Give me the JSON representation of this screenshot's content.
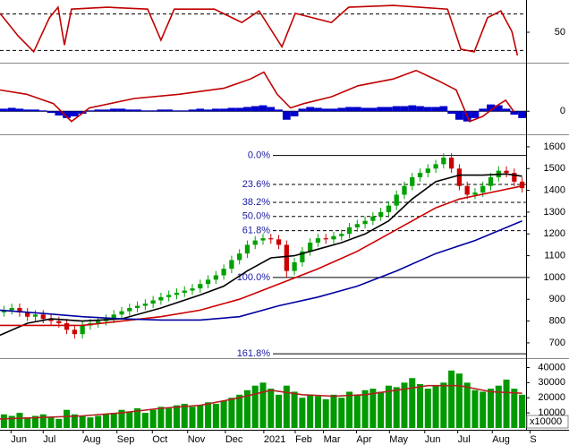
{
  "chart_data": [
    {
      "type": "line",
      "xlim": [
        -0.5,
        66.5
      ],
      "ylim": [
        0,
        100
      ],
      "yticks": [
        50
      ],
      "levels": [
        20,
        80
      ],
      "series": [
        {
          "color": "#c00000",
          "x": [
            -0.5,
            1.8,
            3.8,
            5.8,
            6.9,
            7.7,
            8.6,
            13.2,
            18.3,
            20,
            21.7,
            26.8,
            30.3,
            32.5,
            35.4,
            37.1,
            41.7,
            43.9,
            49.6,
            56.5,
            58.2,
            59.9,
            61.6,
            63.3,
            64.7,
            65.4
          ],
          "values": [
            81,
            44,
            18,
            74,
            91,
            29,
            88,
            91,
            88,
            37,
            88,
            88,
            66,
            85,
            26,
            81,
            66,
            91,
            94,
            88,
            22,
            18,
            74,
            85,
            51,
            12
          ]
        }
      ]
    },
    {
      "type": "macd",
      "xlim": [
        -0.5,
        66.5
      ],
      "ylim": [
        -25,
        55
      ],
      "yticks": [
        0
      ],
      "grid": true,
      "histogram": {
        "color": "#0000cc",
        "values": [
          3,
          4,
          3,
          2,
          2,
          1,
          -2,
          -5,
          -8,
          -6,
          -3,
          1,
          2,
          2,
          3,
          3,
          2,
          2,
          1,
          1,
          2,
          2,
          1,
          1,
          2,
          3,
          2,
          3,
          3,
          4,
          4,
          5,
          6,
          7,
          5,
          2,
          -10,
          -6,
          3,
          5,
          4,
          3,
          3,
          4,
          5,
          5,
          4,
          4,
          5,
          5,
          6,
          6,
          7,
          6,
          5,
          5,
          6,
          -3,
          -10,
          -12,
          -8,
          3,
          8,
          7,
          3,
          -4,
          -8
        ]
      },
      "series": [
        {
          "color": "#c00000",
          "x": [
            -0.5,
            2.9,
            6.3,
            8.6,
            10.9,
            16.6,
            22.3,
            28,
            31.4,
            33.1,
            34.8,
            36.5,
            38.2,
            41.7,
            45.1,
            49.6,
            52.5,
            55.3,
            57.6,
            59.3,
            61,
            62.7,
            63.9,
            65
          ],
          "values": [
            25,
            20,
            9,
            -12,
            4,
            15,
            20,
            27,
            38,
            46,
            20,
            4,
            9,
            17,
            30,
            38,
            48,
            36,
            25,
            -12,
            -6,
            6,
            13,
            -1
          ]
        }
      ]
    },
    {
      "type": "candlestick",
      "xlim": [
        -0.5,
        66.5
      ],
      "ylim": [
        638,
        1649
      ],
      "yticks": [
        700,
        800,
        900,
        1000,
        1100,
        1200,
        1300,
        1400,
        1500,
        1600
      ],
      "up_color": "#00a000",
      "down_color": "#cc0000",
      "open": [
        840,
        850,
        860,
        840,
        820,
        830,
        810,
        800,
        790,
        760,
        740,
        780,
        790,
        800,
        810,
        830,
        845,
        860,
        870,
        880,
        895,
        910,
        920,
        930,
        940,
        950,
        970,
        990,
        1010,
        1040,
        1080,
        1110,
        1150,
        1170,
        1180,
        1175,
        1150,
        1030,
        1070,
        1120,
        1160,
        1180,
        1175,
        1190,
        1200,
        1230,
        1245,
        1260,
        1280,
        1300,
        1330,
        1380,
        1420,
        1460,
        1480,
        1500,
        1520,
        1550,
        1500,
        1420,
        1380,
        1390,
        1420,
        1460,
        1490,
        1480,
        1440
      ],
      "high": [
        870,
        880,
        880,
        860,
        850,
        850,
        830,
        820,
        810,
        780,
        800,
        810,
        820,
        830,
        850,
        865,
        880,
        890,
        900,
        915,
        930,
        940,
        950,
        960,
        970,
        990,
        1010,
        1030,
        1060,
        1100,
        1130,
        1170,
        1190,
        1200,
        1200,
        1195,
        1170,
        1090,
        1140,
        1180,
        1200,
        1200,
        1210,
        1220,
        1250,
        1265,
        1280,
        1300,
        1320,
        1350,
        1400,
        1440,
        1480,
        1500,
        1520,
        1540,
        1570,
        1570,
        1520,
        1440,
        1410,
        1440,
        1480,
        1510,
        1510,
        1500,
        1460
      ],
      "low": [
        820,
        830,
        820,
        800,
        800,
        790,
        780,
        770,
        740,
        720,
        720,
        760,
        770,
        780,
        790,
        810,
        825,
        840,
        850,
        860,
        875,
        890,
        900,
        910,
        920,
        930,
        950,
        970,
        990,
        1020,
        1060,
        1090,
        1130,
        1150,
        1155,
        1130,
        1000,
        1010,
        1050,
        1100,
        1140,
        1155,
        1155,
        1170,
        1180,
        1210,
        1225,
        1240,
        1260,
        1280,
        1310,
        1360,
        1400,
        1440,
        1460,
        1480,
        1500,
        1480,
        1400,
        1360,
        1360,
        1370,
        1400,
        1440,
        1460,
        1420,
        1390
      ],
      "close": [
        850,
        860,
        840,
        820,
        830,
        810,
        800,
        790,
        760,
        740,
        780,
        790,
        800,
        810,
        830,
        845,
        860,
        870,
        880,
        895,
        910,
        920,
        930,
        940,
        950,
        970,
        990,
        1010,
        1040,
        1080,
        1110,
        1150,
        1170,
        1180,
        1175,
        1150,
        1030,
        1070,
        1120,
        1160,
        1180,
        1175,
        1190,
        1200,
        1230,
        1245,
        1260,
        1280,
        1300,
        1330,
        1380,
        1420,
        1460,
        1480,
        1500,
        1520,
        1550,
        1500,
        1420,
        1380,
        1390,
        1420,
        1460,
        1490,
        1480,
        1440,
        1410
      ],
      "series": [
        {
          "color": "#000000",
          "x": [
            -0.5,
            3,
            6,
            10,
            15,
            20,
            25,
            28,
            31,
            34,
            37,
            40,
            43,
            46,
            49,
            52,
            55,
            58,
            61,
            64,
            66
          ],
          "values": [
            735,
            790,
            810,
            800,
            810,
            860,
            920,
            960,
            1030,
            1090,
            1100,
            1130,
            1160,
            1200,
            1260,
            1360,
            1440,
            1470,
            1470,
            1475,
            1465
          ]
        },
        {
          "color": "#cc0000",
          "x": [
            -0.5,
            5,
            10,
            15,
            20,
            25,
            30,
            35,
            40,
            45,
            50,
            55,
            58,
            62,
            66
          ],
          "values": [
            780,
            780,
            780,
            800,
            820,
            850,
            900,
            970,
            1040,
            1120,
            1220,
            1320,
            1360,
            1390,
            1420
          ]
        },
        {
          "color": "#0000a0",
          "x": [
            -0.5,
            5,
            10,
            15,
            20,
            25,
            30,
            35,
            40,
            45,
            50,
            55,
            60,
            66
          ],
          "values": [
            850,
            835,
            820,
            810,
            805,
            805,
            820,
            870,
            910,
            960,
            1030,
            1110,
            1170,
            1260
          ]
        }
      ],
      "fib": [
        {
          "label": "0.0%",
          "value": 1560,
          "style": "solid"
        },
        {
          "label": "23.6%",
          "value": 1427,
          "style": "dashed"
        },
        {
          "label": "38.2%",
          "value": 1345,
          "style": "dashed"
        },
        {
          "label": "50.0%",
          "value": 1280,
          "style": "dashed"
        },
        {
          "label": "61.8%",
          "value": 1215,
          "style": "dashed"
        },
        {
          "label": "100.0%",
          "value": 1000,
          "style": "solid"
        },
        {
          "label": "161.8%",
          "value": 650,
          "style": "solid"
        }
      ]
    },
    {
      "type": "bar",
      "xlim": [
        -0.5,
        66.5
      ],
      "ylim": [
        0,
        45000
      ],
      "yticks": [
        10000,
        20000,
        30000,
        40000
      ],
      "unit_label": "x10000",
      "color": "#009900",
      "values": [
        9000,
        8000,
        10000,
        7000,
        8000,
        9000,
        7000,
        6000,
        12000,
        9000,
        8000,
        7000,
        8000,
        9000,
        10000,
        12000,
        11000,
        13000,
        10000,
        12000,
        14000,
        13000,
        15000,
        16000,
        14000,
        15000,
        17000,
        16000,
        18000,
        20000,
        22000,
        25000,
        28000,
        30000,
        26000,
        22000,
        28000,
        24000,
        20000,
        22000,
        21000,
        19000,
        22000,
        20000,
        24000,
        22000,
        25000,
        26000,
        24000,
        28000,
        27000,
        30000,
        33000,
        29000,
        26000,
        28000,
        30000,
        38000,
        36000,
        30000,
        25000,
        24000,
        26000,
        28000,
        32000,
        26000,
        22000
      ],
      "series": [
        {
          "color": "#b22222",
          "x": [
            -0.5,
            5,
            10,
            15,
            20,
            25,
            30,
            34,
            38,
            42,
            46,
            50,
            54,
            58,
            62,
            66
          ],
          "values": [
            6000,
            7000,
            8000,
            10000,
            13000,
            15000,
            20000,
            25000,
            22000,
            21000,
            22000,
            25000,
            28000,
            28000,
            24000,
            23000
          ]
        }
      ],
      "xticks": [
        {
          "value": 0.9,
          "label": "Jun"
        },
        {
          "value": 5.0,
          "label": "Jul"
        },
        {
          "value": 10.1,
          "label": "Aug"
        },
        {
          "value": 14.4,
          "label": "Sep"
        },
        {
          "value": 18.9,
          "label": "Oct"
        },
        {
          "value": 23.4,
          "label": "Nov"
        },
        {
          "value": 28.2,
          "label": "Dec"
        },
        {
          "value": 33.1,
          "label": "2021"
        },
        {
          "value": 37.1,
          "label": "Feb"
        },
        {
          "value": 40.7,
          "label": "Mar"
        },
        {
          "value": 44.9,
          "label": "Apr"
        },
        {
          "value": 49.1,
          "label": "May"
        },
        {
          "value": 53.6,
          "label": "Jun"
        },
        {
          "value": 57.8,
          "label": "Jul"
        },
        {
          "value": 62.2,
          "label": "Aug"
        },
        {
          "value": 67.0,
          "label": "S"
        }
      ]
    }
  ]
}
